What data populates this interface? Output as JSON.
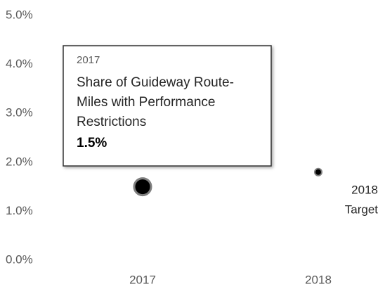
{
  "chart_data": {
    "type": "scatter",
    "categories": [
      "2017",
      "2018"
    ],
    "values": [
      1.5,
      1.8
    ],
    "value_labels": [
      "1.5%",
      null
    ],
    "color": "#000000",
    "ylim": [
      0,
      5
    ],
    "yticks": [
      {
        "value": 0,
        "label": "0.0%"
      },
      {
        "value": 1,
        "label": "1.0%"
      },
      {
        "value": 2,
        "label": "2.0%"
      },
      {
        "value": 3,
        "label": "3.0%"
      },
      {
        "value": 4,
        "label": "4.0%"
      },
      {
        "value": 5,
        "label": "5.0%"
      }
    ],
    "grid": false,
    "tooltip": {
      "lines": [
        "Share of Guideway Route-",
        "Miles with Performance",
        "Restrictions"
      ]
    },
    "annotation": {
      "lines": [
        "2018",
        "Target"
      ]
    }
  }
}
